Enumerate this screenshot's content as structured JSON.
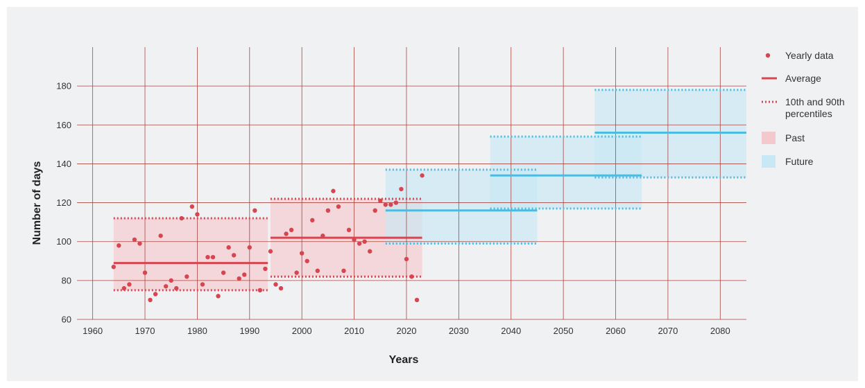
{
  "colors": {
    "past": "#d64550",
    "past_fill": "#f4c9cd",
    "future": "#4dbbe0",
    "future_fill": "#c7e8f4",
    "grid": "#a8443c",
    "panel": "#f0f1f3"
  },
  "chart_data": {
    "type": "scatter",
    "xlabel": "Years",
    "ylabel": "Number of days",
    "xlim": [
      1957,
      2085
    ],
    "ylim": [
      60,
      200
    ],
    "x_ticks": [
      1960,
      1970,
      1980,
      1990,
      2000,
      2010,
      2020,
      2030,
      2040,
      2050,
      2060,
      2070,
      2080
    ],
    "y_ticks": [
      60,
      80,
      100,
      120,
      140,
      160,
      180
    ],
    "grid": true,
    "legend_position": "right",
    "legend": [
      {
        "label": "Yearly data",
        "kind": "dot"
      },
      {
        "label": "Average",
        "kind": "line"
      },
      {
        "label": "10th and 90th percentiles",
        "lines": [
          "10th and 90th",
          "percentiles"
        ],
        "kind": "dotted"
      },
      {
        "label": "Past",
        "kind": "past-box"
      },
      {
        "label": "Future",
        "kind": "future-box"
      }
    ],
    "yearly_data": {
      "x": [
        1964,
        1965,
        1966,
        1967,
        1968,
        1969,
        1970,
        1971,
        1972,
        1973,
        1974,
        1975,
        1976,
        1977,
        1978,
        1979,
        1980,
        1981,
        1982,
        1983,
        1984,
        1985,
        1986,
        1987,
        1988,
        1989,
        1990,
        1991,
        1992,
        1993,
        1994,
        1995,
        1996,
        1997,
        1998,
        1999,
        2000,
        2001,
        2002,
        2003,
        2004,
        2005,
        2006,
        2007,
        2008,
        2009,
        2010,
        2011,
        2012,
        2013,
        2014,
        2015,
        2016,
        2017,
        2018,
        2019,
        2020,
        2021,
        2022,
        2023
      ],
      "y": [
        87,
        98,
        76,
        78,
        101,
        99,
        84,
        70,
        73,
        103,
        77,
        80,
        76,
        112,
        82,
        118,
        114,
        78,
        92,
        92,
        72,
        84,
        97,
        93,
        81,
        83,
        97,
        116,
        75,
        86,
        95,
        78,
        76,
        104,
        106,
        84,
        94,
        90,
        111,
        85,
        103,
        116,
        126,
        118,
        85,
        106,
        101,
        99,
        100,
        95,
        116,
        121,
        119,
        119,
        120,
        127,
        91,
        82,
        70,
        134
      ]
    },
    "periods": [
      {
        "name": "1964-1993",
        "kind": "past",
        "x_start": 1964,
        "x_end": 1993.5,
        "average": 89,
        "p10": 75,
        "p90": 112
      },
      {
        "name": "1994-2023",
        "kind": "past",
        "x_start": 1994,
        "x_end": 2023,
        "average": 102,
        "p10": 82,
        "p90": 122
      },
      {
        "name": "2016-2045",
        "kind": "future",
        "x_start": 2016,
        "x_end": 2045,
        "average": 116,
        "p10": 99,
        "p90": 137
      },
      {
        "name": "2036-2065",
        "kind": "future",
        "x_start": 2036,
        "x_end": 2065,
        "average": 134,
        "p10": 117,
        "p90": 154
      },
      {
        "name": "2056-2085",
        "kind": "future",
        "x_start": 2056,
        "x_end": 2085,
        "average": 156,
        "p10": 133,
        "p90": 178
      }
    ]
  }
}
